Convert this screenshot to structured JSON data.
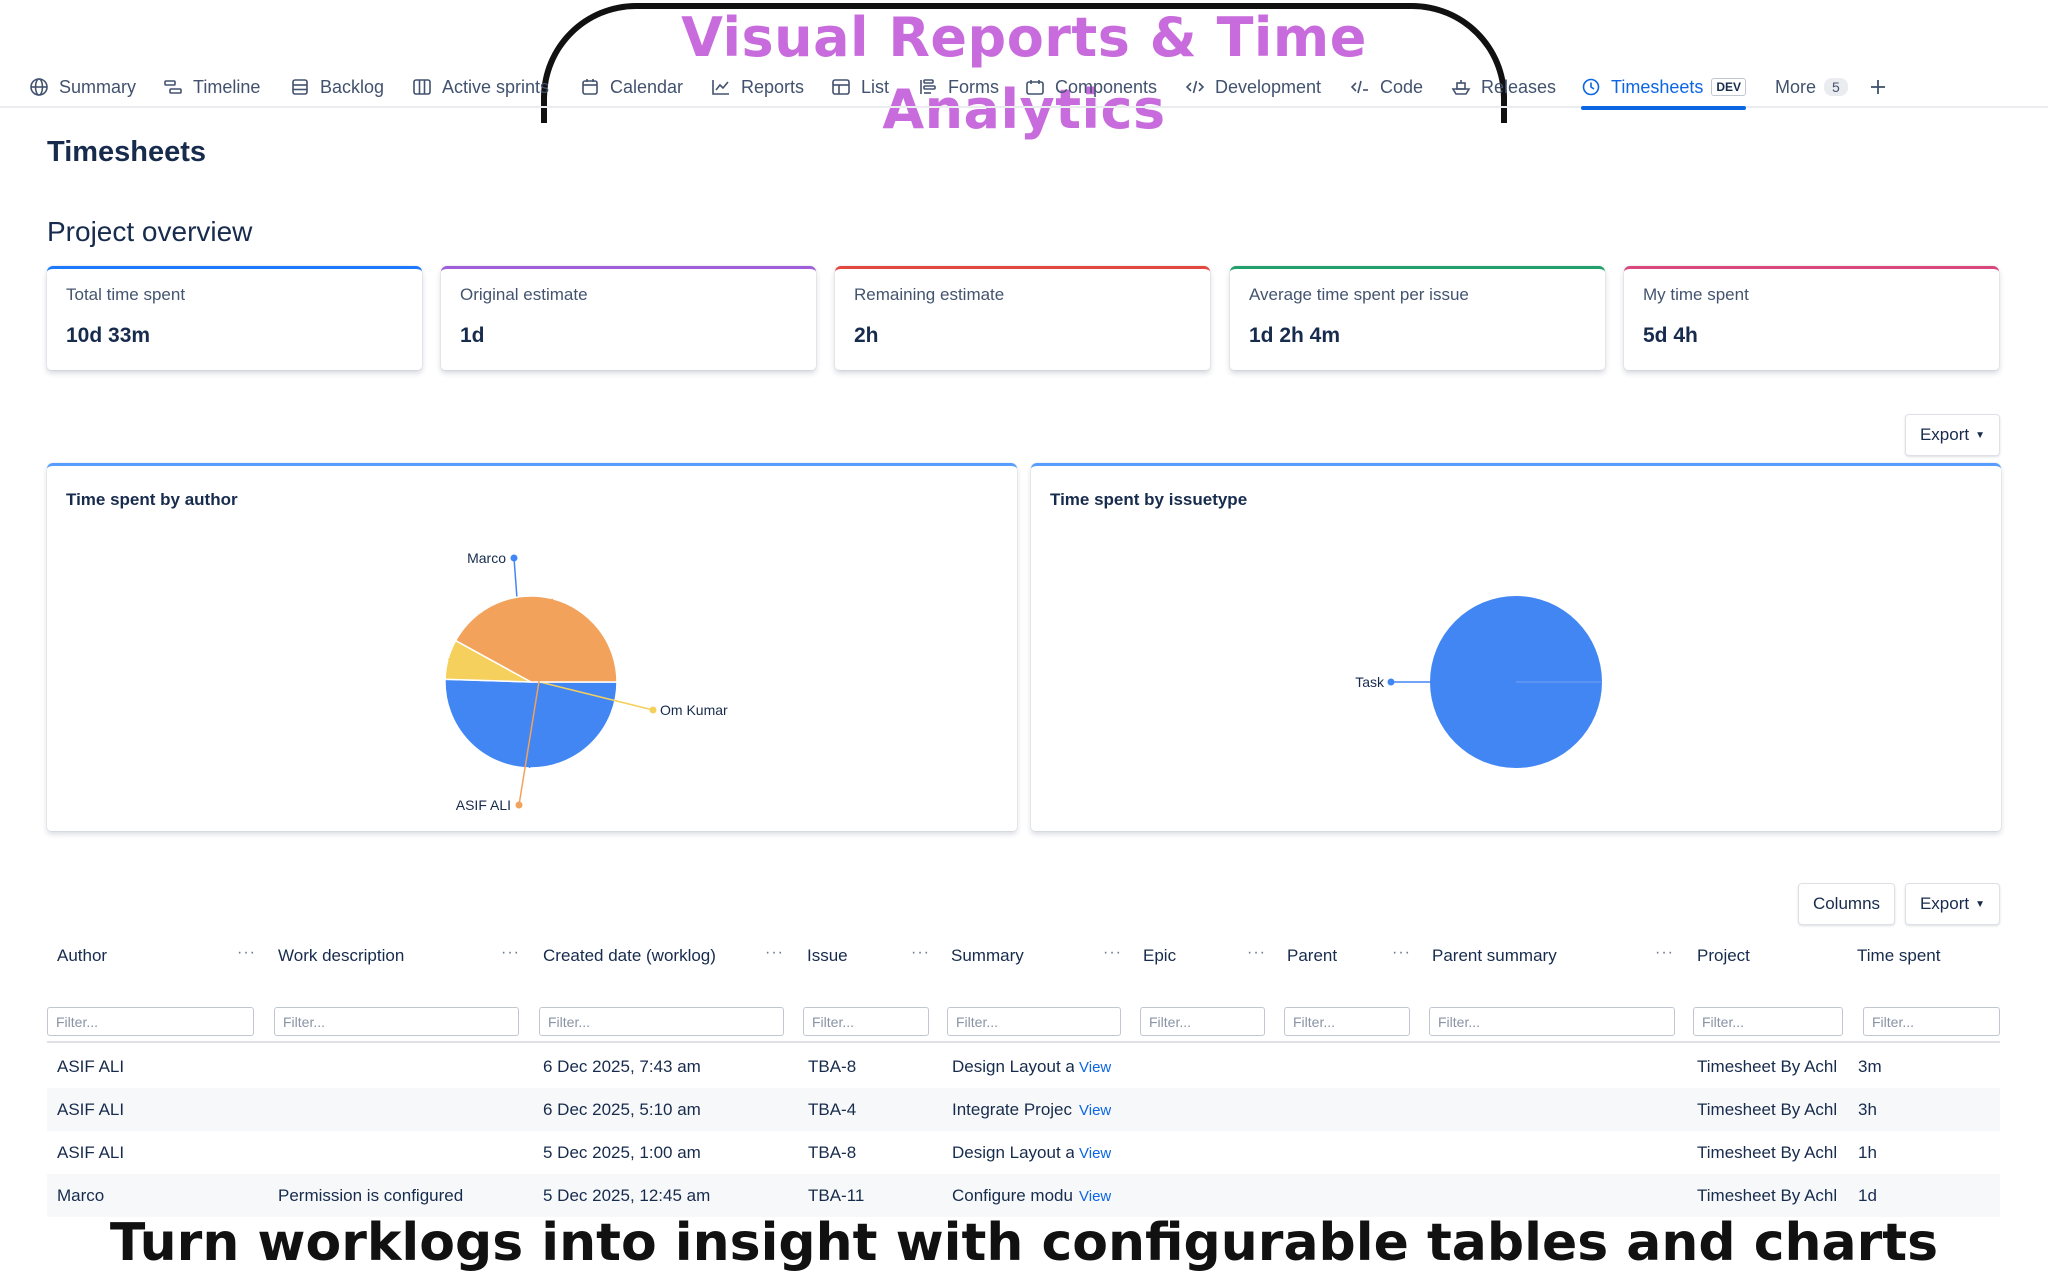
{
  "banner": {
    "title": "Visual Reports & Time Analytics"
  },
  "nav": {
    "tabs": [
      {
        "label": "Summary",
        "icon": "globe-icon"
      },
      {
        "label": "Timeline",
        "icon": "timeline-icon"
      },
      {
        "label": "Backlog",
        "icon": "backlog-icon"
      },
      {
        "label": "Active sprints",
        "icon": "board-icon"
      },
      {
        "label": "Calendar",
        "icon": "calendar-icon"
      },
      {
        "label": "Reports",
        "icon": "chart-line-icon"
      },
      {
        "label": "List",
        "icon": "list-icon"
      },
      {
        "label": "Forms",
        "icon": "forms-icon"
      },
      {
        "label": "Components",
        "icon": "components-icon"
      },
      {
        "label": "Development",
        "icon": "development-icon"
      },
      {
        "label": "Code",
        "icon": "code-icon"
      },
      {
        "label": "Releases",
        "icon": "ship-icon"
      },
      {
        "label": "Timesheets",
        "icon": "clock-icon",
        "badge": "DEV",
        "active": true
      },
      {
        "label": "More",
        "count": "5"
      }
    ],
    "add_icon": "plus-icon"
  },
  "page": {
    "title": "Timesheets",
    "section_title": "Project overview"
  },
  "stats": [
    {
      "label": "Total time spent",
      "value": "10d 33m",
      "color": "#1d7afc"
    },
    {
      "label": "Original estimate",
      "value": "1d",
      "color": "#9f5fd8"
    },
    {
      "label": "Remaining estimate",
      "value": "2h",
      "color": "#e2483d"
    },
    {
      "label": "Average time spent per issue",
      "value": "1d 2h 4m",
      "color": "#22a06b"
    },
    {
      "label": "My time spent",
      "value": "5d 4h",
      "color": "#d9487d"
    }
  ],
  "charts": {
    "export_label": "Export"
  },
  "chart_data": [
    {
      "type": "pie",
      "title": "Time spent by author",
      "slices": [
        {
          "label": "Marco",
          "value": 50.5,
          "color": "#4286f4"
        },
        {
          "label": "Om Kumar",
          "value": 7.5,
          "color": "#f5d05c"
        },
        {
          "label": "ASIF ALI",
          "value": 42.0,
          "color": "#f2a25a"
        }
      ]
    },
    {
      "type": "pie",
      "title": "Time spent by issuetype",
      "slices": [
        {
          "label": "Task",
          "value": 100,
          "color": "#4286f4"
        }
      ]
    }
  ],
  "table": {
    "columns_label": "Columns",
    "export_label": "Export",
    "filter_placeholder": "Filter...",
    "columns": [
      "Author",
      "Work description",
      "Created date (worklog)",
      "Issue",
      "Summary",
      "Epic",
      "Parent",
      "Parent summary",
      "Project",
      "Time spent"
    ],
    "view_label": "View",
    "rows": [
      {
        "author": "ASIF ALI",
        "work_description": "",
        "created": "6 Dec 2025, 7:43 am",
        "issue": "TBA-8",
        "summary": "Design Layout a",
        "epic": "",
        "parent": "",
        "parent_summary": "",
        "project": "Timesheet By Achl",
        "time_spent": "3m"
      },
      {
        "author": "ASIF ALI",
        "work_description": "",
        "created": "6 Dec 2025, 5:10 am",
        "issue": "TBA-4",
        "summary": "Integrate Projec",
        "epic": "",
        "parent": "",
        "parent_summary": "",
        "project": "Timesheet By Achl",
        "time_spent": "3h"
      },
      {
        "author": "ASIF ALI",
        "work_description": "",
        "created": "5 Dec 2025, 1:00 am",
        "issue": "TBA-8",
        "summary": "Design Layout a",
        "epic": "",
        "parent": "",
        "parent_summary": "",
        "project": "Timesheet By Achl",
        "time_spent": "1h"
      },
      {
        "author": "Marco",
        "work_description": "Permission is configured",
        "created": "5 Dec 2025, 12:45 am",
        "issue": "TBA-11",
        "summary": "Configure modu",
        "epic": "",
        "parent": "",
        "parent_summary": "",
        "project": "Timesheet By Achl",
        "time_spent": "1d"
      }
    ]
  },
  "caption": "Turn worklogs into insight with configurable tables and charts"
}
